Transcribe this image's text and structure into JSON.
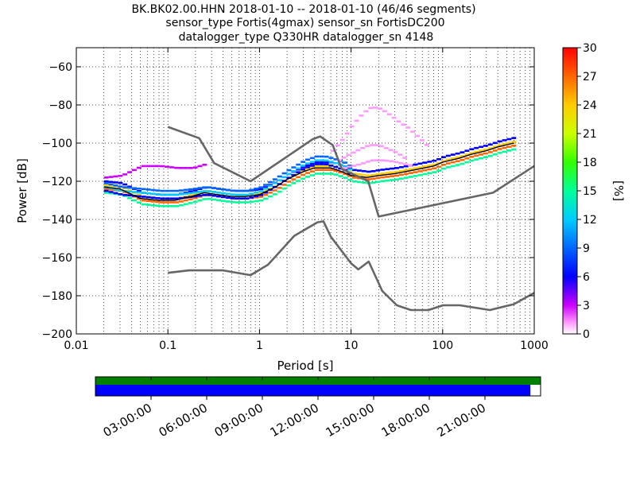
{
  "title_lines": [
    "BK.BK02.00.HHN   2018-01-10 -- 2018-01-10  (46/46 segments)",
    "sensor_type Fortis(4gmax) sensor_sn FortisDC200",
    "datalogger_type Q330HR datalogger_sn 4148"
  ],
  "chart_data": {
    "type": "heatmap",
    "xlabel": "Period [s]",
    "ylabel": "Power [dB]",
    "xscale": "log",
    "xlim": [
      0.01,
      1000
    ],
    "ylim": [
      -200,
      -50
    ],
    "x_ticks": [
      0.01,
      0.1,
      1,
      10,
      100,
      1000
    ],
    "x_tick_labels": [
      "0.01",
      "0.1",
      "1",
      "10",
      "100",
      "1000"
    ],
    "y_ticks": [
      -200,
      -180,
      -160,
      -140,
      -120,
      -100,
      -80,
      -60
    ],
    "y_tick_labels": [
      "−200",
      "−180",
      "−160",
      "−140",
      "−120",
      "−100",
      "−80",
      "−60"
    ],
    "grid": true,
    "colorbar": {
      "label": "[%]",
      "range": [
        0,
        30
      ],
      "ticks": [
        0,
        3,
        6,
        9,
        12,
        15,
        18,
        21,
        24,
        27,
        30
      ],
      "tick_labels": [
        "0",
        "3",
        "6",
        "9",
        "12",
        "15",
        "18",
        "21",
        "24",
        "27",
        "30"
      ]
    },
    "noise_model_high": {
      "x": [
        0.1,
        0.22,
        0.32,
        0.8,
        3.8,
        4.6,
        6.3,
        7.9,
        15.4,
        20,
        354.8,
        1000
      ],
      "y": [
        -91.5,
        -97.4,
        -110.5,
        -120,
        -98,
        -96.5,
        -101,
        -113.5,
        -120,
        -138.5,
        -126,
        -112
      ]
    },
    "noise_model_low": {
      "x": [
        0.1,
        0.17,
        0.4,
        0.8,
        1.24,
        2.4,
        4.3,
        5,
        6,
        10,
        12,
        15.6,
        21.9,
        31.6,
        45,
        70,
        101,
        154,
        328,
        600,
        1000
      ],
      "y": [
        -168,
        -166.7,
        -166.7,
        -169.2,
        -163.7,
        -148.6,
        -141.5,
        -141,
        -149,
        -163,
        -166.2,
        -162.1,
        -177.5,
        -185,
        -187.5,
        -187.5,
        -185,
        -185,
        -187.5,
        -184.4,
        -178.5
      ]
    },
    "mode_curve": {
      "x": [
        0.02,
        0.03,
        0.05,
        0.08,
        0.12,
        0.18,
        0.25,
        0.35,
        0.5,
        0.7,
        1,
        1.5,
        2,
        3,
        4,
        5,
        6,
        8,
        10,
        15,
        20,
        30,
        50,
        80,
        100,
        150,
        200,
        300,
        400,
        600
      ],
      "y": [
        -123,
        -124,
        -129,
        -130,
        -130,
        -128,
        -126,
        -127,
        -128,
        -128,
        -127,
        -123,
        -119,
        -115,
        -113,
        -113,
        -113,
        -115,
        -117,
        -118,
        -117,
        -116,
        -114,
        -112,
        -110,
        -108,
        -106,
        -104,
        -102,
        -100
      ]
    },
    "secondary_branch": {
      "x": [
        0.02,
        0.03,
        0.05,
        0.08,
        0.12,
        0.18,
        0.25,
        0.35,
        0.5,
        0.7,
        1,
        1.5,
        2,
        3,
        4,
        5,
        6,
        8,
        10
      ],
      "y": [
        -123,
        -125,
        -126,
        -127,
        -127,
        -126,
        -125,
        -126,
        -127,
        -127,
        -125,
        -120,
        -116,
        -111,
        -109,
        -109,
        -110,
        -112,
        -115
      ]
    },
    "outlier_branch": {
      "x": [
        0.02,
        0.03,
        0.05,
        0.08,
        0.12,
        0.18,
        0.25
      ],
      "y": [
        -118,
        -117,
        -112,
        -112,
        -113,
        -113,
        -111
      ]
    },
    "microseism_curves": [
      {
        "x": [
          6,
          8,
          10,
          13,
          16,
          20,
          25,
          32,
          40,
          55,
          70
        ],
        "y": [
          -104,
          -97,
          -90,
          -84,
          -81,
          -82,
          -85,
          -89,
          -92,
          -98,
          -103
        ]
      },
      {
        "x": [
          7,
          9,
          12,
          15,
          19,
          24,
          30,
          40
        ],
        "y": [
          -109,
          -106,
          -103,
          -101,
          -101,
          -103,
          -105,
          -109
        ]
      },
      {
        "x": [
          8,
          12,
          16,
          22,
          30,
          45
        ],
        "y": [
          -113,
          -111,
          -109,
          -109,
          -110,
          -112
        ]
      }
    ],
    "timeline": {
      "time_labels": [
        "03:00:00",
        "06:00:00",
        "09:00:00",
        "12:00:00",
        "15:00:00",
        "18:00:00",
        "21:00:00"
      ],
      "tick_hours": [
        3,
        6,
        9,
        12,
        15,
        18,
        21
      ],
      "span_hours": [
        0,
        24
      ],
      "available_data_color": "#008000",
      "used_data_color": "#0000ff",
      "used_fraction": 0.977
    }
  }
}
